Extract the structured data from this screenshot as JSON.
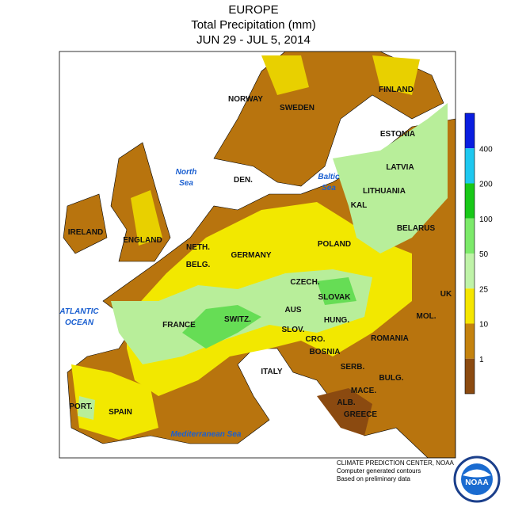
{
  "header": {
    "title": "EUROPE",
    "subtitle": "Total Precipitation (mm)",
    "dates": "JUN 29 - JUL 5, 2014"
  },
  "labels": {
    "countries": [
      "NORWAY",
      "SWEDEN",
      "FINLAND",
      "ESTONIA",
      "LATVIA",
      "LITHUANIA",
      "KAL",
      "BELARUS",
      "POLAND",
      "DEN.",
      "IRELAND",
      "ENGLAND",
      "NETH.",
      "BELG.",
      "GERMANY",
      "CZECH.",
      "SLOVAK",
      "UK",
      "MOL.",
      "AUS",
      "SWITZ.",
      "FRANCE",
      "HUNG.",
      "SLOV.",
      "CRO.",
      "ROMANIA",
      "BOSNIA",
      "SERB.",
      "BULG.",
      "ITALY",
      "MACE.",
      "ALB.",
      "GREECE",
      "PORT.",
      "SPAIN"
    ],
    "seas": [
      [
        "North",
        "Sea"
      ],
      [
        "Baltic",
        "Sea"
      ],
      [
        "ATLANTIC",
        "OCEAN"
      ],
      [
        "Mediterranean Sea"
      ]
    ]
  },
  "legend": {
    "levels": [
      400,
      200,
      100,
      50,
      25,
      10,
      1
    ],
    "colors": [
      "#0a1ee0",
      "#1ec8f0",
      "#18c818",
      "#7cea6a",
      "#bff3a8",
      "#f5e600",
      "#c4820e",
      "#8b4a10"
    ]
  },
  "footer": [
    "CLIMATE PREDICTION CENTER, NOAA",
    "Computer generated contours",
    "Based on preliminary data"
  ]
}
